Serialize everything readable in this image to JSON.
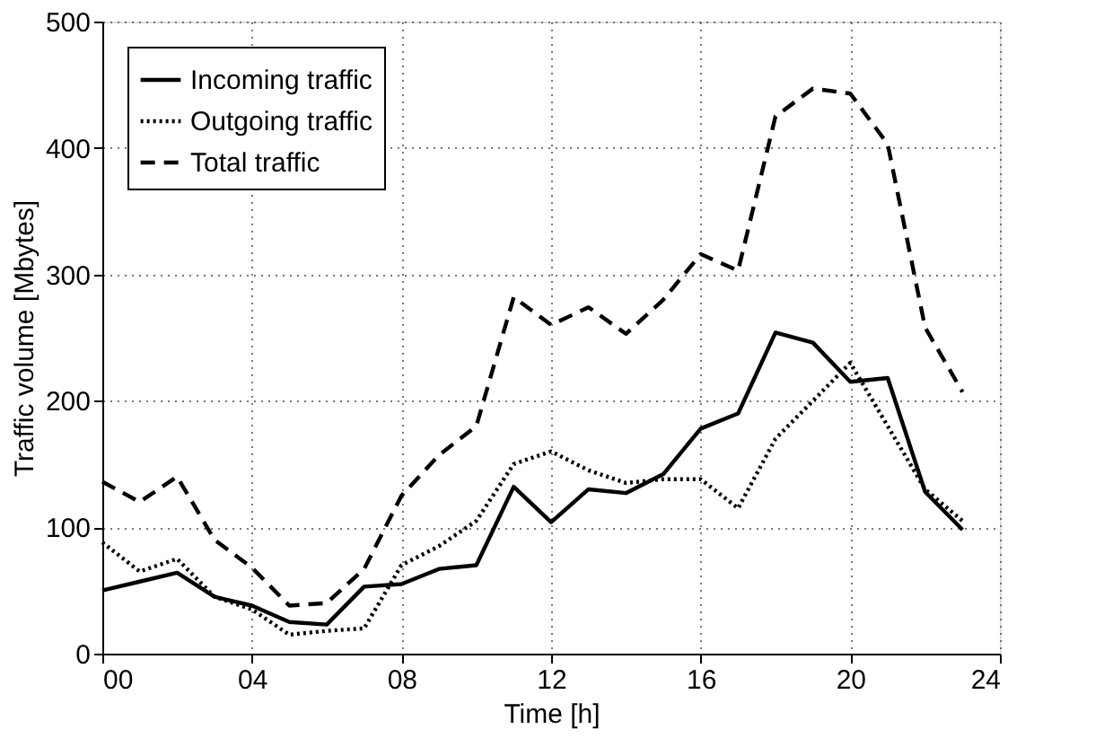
{
  "chart_data": {
    "type": "line",
    "xlabel": "Time [h]",
    "ylabel": "Traffic volume [Mbytes]",
    "x": [
      0,
      1,
      2,
      3,
      4,
      5,
      6,
      7,
      8,
      9,
      10,
      11,
      12,
      13,
      14,
      15,
      16,
      17,
      18,
      19,
      20,
      21,
      22,
      23
    ],
    "xlim": [
      0,
      24
    ],
    "xticks": [
      {
        "value": 0,
        "label": "00"
      },
      {
        "value": 4,
        "label": "04"
      },
      {
        "value": 8,
        "label": "08"
      },
      12,
      16,
      20,
      24
    ],
    "ylim": [
      0,
      500
    ],
    "yticks": [
      0,
      100,
      200,
      300,
      400,
      500
    ],
    "grid": true,
    "legend": "top left",
    "marker": "none",
    "series": [
      {
        "name": "Incoming traffic",
        "color": "#000000",
        "line_style": "solid",
        "values": [
          50,
          57,
          64,
          45,
          38,
          25,
          23,
          53,
          55,
          67,
          70,
          132,
          104,
          130,
          127,
          142,
          178,
          190,
          254,
          246,
          215,
          218,
          128,
          98
        ]
      },
      {
        "name": "Outgoing traffic",
        "color": "#000000",
        "line_style": "dotted",
        "values": [
          88,
          65,
          75,
          45,
          35,
          15,
          18,
          20,
          70,
          85,
          105,
          150,
          160,
          145,
          135,
          138,
          138,
          115,
          170,
          200,
          230,
          180,
          130,
          105
        ]
      },
      {
        "name": "Total traffic",
        "color": "#000000",
        "line_style": "dashed",
        "values": [
          136,
          120,
          140,
          90,
          68,
          38,
          40,
          67,
          125,
          157,
          180,
          282,
          260,
          274,
          253,
          280,
          316,
          303,
          425,
          447,
          443,
          403,
          258,
          207
        ]
      }
    ]
  }
}
